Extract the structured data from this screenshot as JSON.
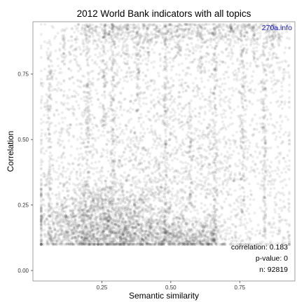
{
  "chart_data": {
    "type": "scatter",
    "title": "2012 World Bank indicators with all topics",
    "xlabel": "Semantic similarity",
    "ylabel": "Correlation",
    "xlim": [
      0.0,
      0.95
    ],
    "ylim": [
      -0.04,
      0.95
    ],
    "x_ticks": [
      0.25,
      0.5,
      0.75
    ],
    "x_tick_labels": [
      "0.25",
      "0.50",
      "0.75"
    ],
    "y_ticks": [
      0.0,
      0.25,
      0.5,
      0.75
    ],
    "y_tick_labels": [
      "0.00",
      "0.25",
      "0.50",
      "0.75"
    ],
    "grid": false,
    "watermark": "270a.info",
    "watermark_color": "#1010d0",
    "point_color": "#000000",
    "point_alpha": 0.07,
    "annotations": {
      "correlation": "correlation: 0.183",
      "p_value": "p-value: 0",
      "n": "n: 92819"
    },
    "stats": {
      "correlation": 0.183,
      "p_value": 0,
      "n": 92819
    },
    "density_clusters": [
      {
        "x": 0.25,
        "y": 0.2,
        "sx": 0.13,
        "sy": 0.07,
        "weight": 0.42
      },
      {
        "x": 0.45,
        "y": 0.28,
        "sx": 0.18,
        "sy": 0.15,
        "weight": 0.18
      },
      {
        "x": 0.4,
        "y": 0.55,
        "sx": 0.22,
        "sy": 0.22,
        "weight": 0.22
      },
      {
        "x": 0.55,
        "y": 0.12,
        "sx": 0.2,
        "sy": 0.04,
        "weight": 0.1
      },
      {
        "x": 0.7,
        "y": 0.55,
        "sx": 0.15,
        "sy": 0.25,
        "weight": 0.08
      }
    ],
    "vertical_streaks": [
      {
        "x": 0.06,
        "y_from": 0.12,
        "y_to": 0.85
      },
      {
        "x": 0.11,
        "y_from": 0.78,
        "y_to": 0.93
      },
      {
        "x": 0.2,
        "y_from": 0.3,
        "y_to": 0.93
      },
      {
        "x": 0.26,
        "y_from": 0.55,
        "y_to": 0.94
      },
      {
        "x": 0.29,
        "y_from": 0.2,
        "y_to": 0.94
      },
      {
        "x": 0.34,
        "y_from": 0.75,
        "y_to": 0.94
      },
      {
        "x": 0.38,
        "y_from": 0.6,
        "y_to": 0.94
      },
      {
        "x": 0.42,
        "y_from": 0.8,
        "y_to": 0.94
      },
      {
        "x": 0.48,
        "y_from": 0.12,
        "y_to": 0.94
      },
      {
        "x": 0.53,
        "y_from": 0.82,
        "y_to": 0.94
      },
      {
        "x": 0.57,
        "y_from": 0.25,
        "y_to": 0.6
      },
      {
        "x": 0.61,
        "y_from": 0.75,
        "y_to": 0.94
      },
      {
        "x": 0.66,
        "y_from": 0.1,
        "y_to": 0.94
      },
      {
        "x": 0.72,
        "y_from": 0.8,
        "y_to": 0.94
      },
      {
        "x": 0.76,
        "y_from": 0.2,
        "y_to": 0.94
      },
      {
        "x": 0.8,
        "y_from": 0.8,
        "y_to": 0.94
      },
      {
        "x": 0.84,
        "y_from": 0.12,
        "y_to": 0.9
      },
      {
        "x": 0.87,
        "y_from": 0.82,
        "y_to": 0.94
      }
    ]
  }
}
